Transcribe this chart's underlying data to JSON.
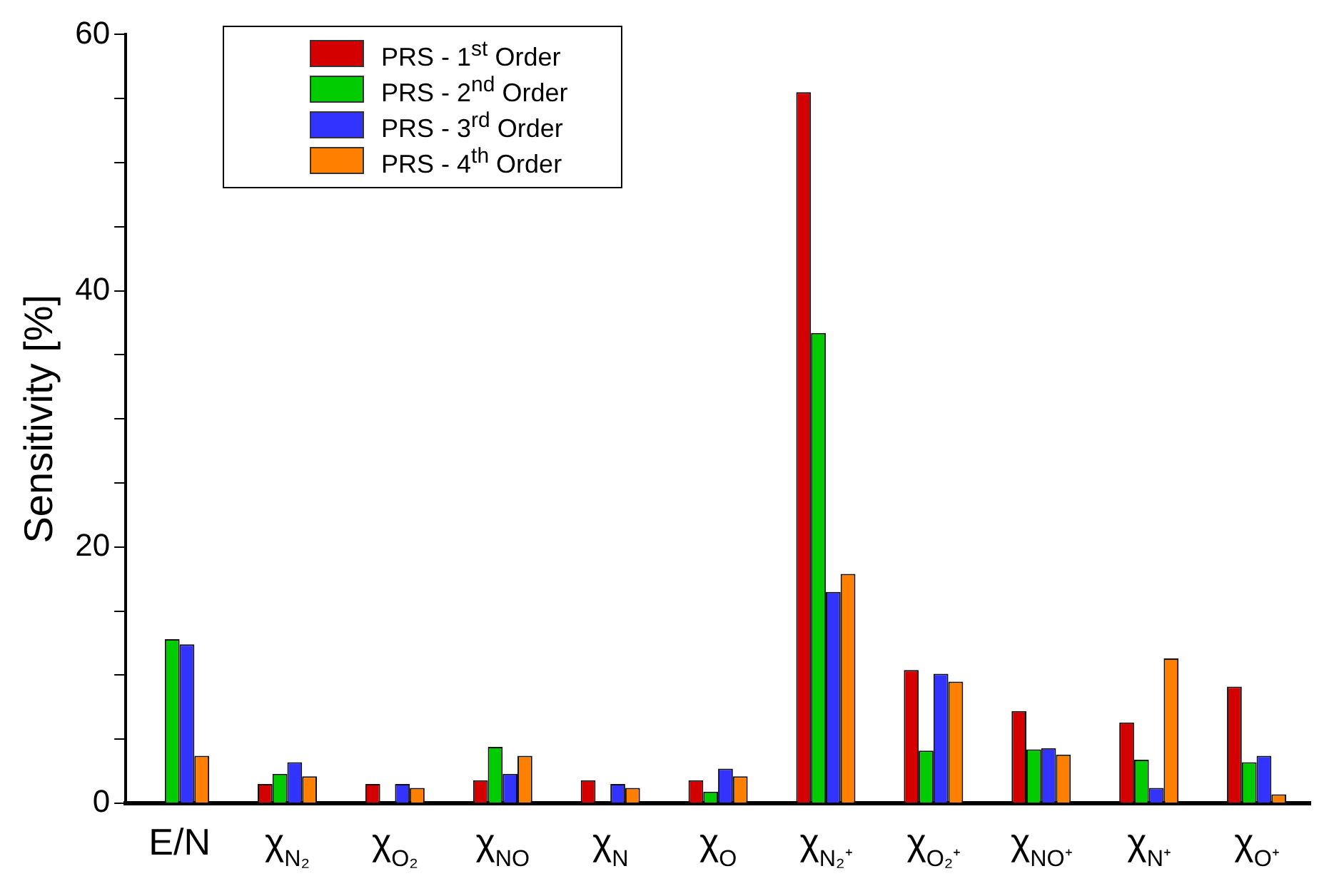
{
  "chart_data": {
    "type": "bar",
    "ylabel": "Sensitivity [%]",
    "categories": [
      "E/N",
      "χ$_{N₂}$",
      "χ$_{O₂}$",
      "χ$_{NO}$",
      "χ$_{N}$",
      "χ$_{O}$",
      "χ$_{N₂⁺}$",
      "χ$_{O₂⁺}$",
      "χ$_{NO⁺}$",
      "χ$_{N⁺}$",
      "χ$_{O⁺}$"
    ],
    "series": [
      {
        "name": "PRS - 1$^{st}$ Order",
        "color": "#d40000",
        "values": [
          null,
          1.5,
          1.5,
          1.8,
          1.8,
          1.8,
          55.5,
          10.4,
          7.2,
          6.3,
          9.1
        ]
      },
      {
        "name": "PRS - 2$^{nd}$ Order",
        "color": "#00cc00",
        "values": [
          12.8,
          2.3,
          null,
          4.4,
          null,
          0.9,
          36.7,
          4.1,
          4.2,
          3.4,
          3.2
        ]
      },
      {
        "name": "PRS - 3$^{rd}$ Order",
        "color": "#3333ff",
        "values": [
          12.4,
          3.2,
          1.5,
          2.3,
          1.5,
          2.7,
          16.5,
          10.1,
          4.3,
          1.2,
          3.7
        ]
      },
      {
        "name": "PRS - 4$^{th}$ Order",
        "color": "#ff8000",
        "values": [
          3.7,
          2.1,
          1.2,
          3.7,
          1.2,
          2.1,
          17.9,
          9.5,
          3.8,
          11.3,
          0.7
        ]
      }
    ],
    "ylim": [
      0,
      60
    ],
    "yticks": [
      0,
      {
        "value": 5,
        "label": null
      },
      {
        "value": 10,
        "label": null
      },
      {
        "value": 15,
        "label": null
      },
      20,
      {
        "value": 25,
        "label": null
      },
      {
        "value": 30,
        "label": null
      },
      {
        "value": 35,
        "label": null
      },
      40,
      {
        "value": 45,
        "label": null
      },
      {
        "value": 50,
        "label": null
      },
      {
        "value": 55,
        "label": null
      },
      60
    ],
    "grid": false,
    "legend": "top left"
  }
}
